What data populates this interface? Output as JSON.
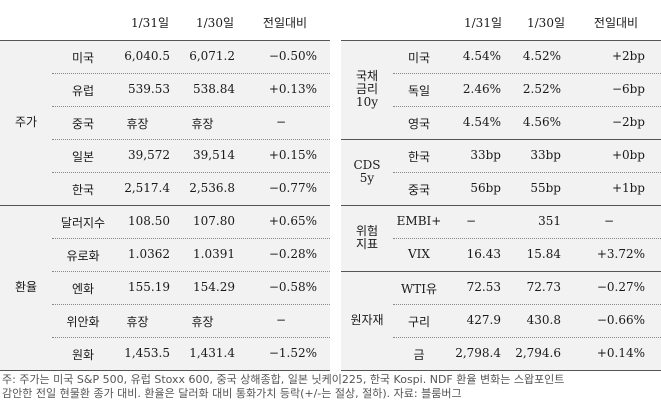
{
  "left_table": {
    "headers": [
      "1/31일",
      "1/30일",
      "전일대비"
    ],
    "groups": [
      {
        "category": "주가",
        "rows": [
          {
            "name": "미국",
            "v1": "6,040.5",
            "v2": "6,071.2",
            "chg": "−0.50%"
          },
          {
            "name": "유럽",
            "v1": "539.53",
            "v2": "538.84",
            "chg": "+0.13%"
          },
          {
            "name": "중국",
            "v1": "휴장",
            "v2": "휴장",
            "chg": "−"
          },
          {
            "name": "일본",
            "v1": "39,572",
            "v2": "39,514",
            "chg": "+0.15%"
          },
          {
            "name": "한국",
            "v1": "2,517.4",
            "v2": "2,536.8",
            "chg": "−0.77%"
          }
        ]
      },
      {
        "category": "환율",
        "rows": [
          {
            "name": "달러지수",
            "v1": "108.50",
            "v2": "107.80",
            "chg": "+0.65%"
          },
          {
            "name": "유로화",
            "v1": "1.0362",
            "v2": "1.0391",
            "chg": "−0.28%"
          },
          {
            "name": "엔화",
            "v1": "155.19",
            "v2": "154.29",
            "chg": "−0.58%"
          },
          {
            "name": "위안화",
            "v1": "휴장",
            "v2": "휴장",
            "chg": "−"
          },
          {
            "name": "원화",
            "v1": "1,453.5",
            "v2": "1,431.4",
            "chg": "−1.52%"
          }
        ]
      }
    ]
  },
  "right_table": {
    "headers": [
      "1/31일",
      "1/30일",
      "전일대비"
    ],
    "groups": [
      {
        "category": "국채\n금리\n10y",
        "rows": [
          {
            "name": "미국",
            "v1": "4.54%",
            "v2": "4.52%",
            "chg": "+2bp"
          },
          {
            "name": "독일",
            "v1": "2.46%",
            "v2": "2.52%",
            "chg": "−6bp"
          },
          {
            "name": "영국",
            "v1": "4.54%",
            "v2": "4.56%",
            "chg": "−2bp"
          }
        ]
      },
      {
        "category": "CDS\n5y",
        "rows": [
          {
            "name": "한국",
            "v1": "33bp",
            "v2": "33bp",
            "chg": "+0bp"
          },
          {
            "name": "중국",
            "v1": "56bp",
            "v2": "55bp",
            "chg": "+1bp"
          }
        ]
      },
      {
        "category": "위험\n지표",
        "rows": [
          {
            "name": "EMBI+",
            "v1": "−",
            "v2": "351",
            "chg": "−"
          },
          {
            "name": "VIX",
            "v1": "16.43",
            "v2": "15.84",
            "chg": "+3.72%"
          }
        ]
      },
      {
        "category": "원자재",
        "rows": [
          {
            "name": "WTI유",
            "v1": "72.53",
            "v2": "72.73",
            "chg": "−0.27%"
          },
          {
            "name": "구리",
            "v1": "427.9",
            "v2": "430.8",
            "chg": "−0.66%"
          },
          {
            "name": "금",
            "v1": "2,798.4",
            "v2": "2,794.6",
            "chg": "+0.14%"
          }
        ]
      }
    ]
  },
  "note": {
    "line1": "주: 주가는 미국 S&P 500, 유럽 Stoxx 600, 중국 상해종합, 일본 닛케이225, 한국 Kospi. NDF 환율 변화는 스왑포인트",
    "line2": "감안한 전일 현물환 종가 대비. 환율은 달러화 대비 통화가치 등락(+/-는 절상, 절하). 자료: 블룸버그"
  }
}
